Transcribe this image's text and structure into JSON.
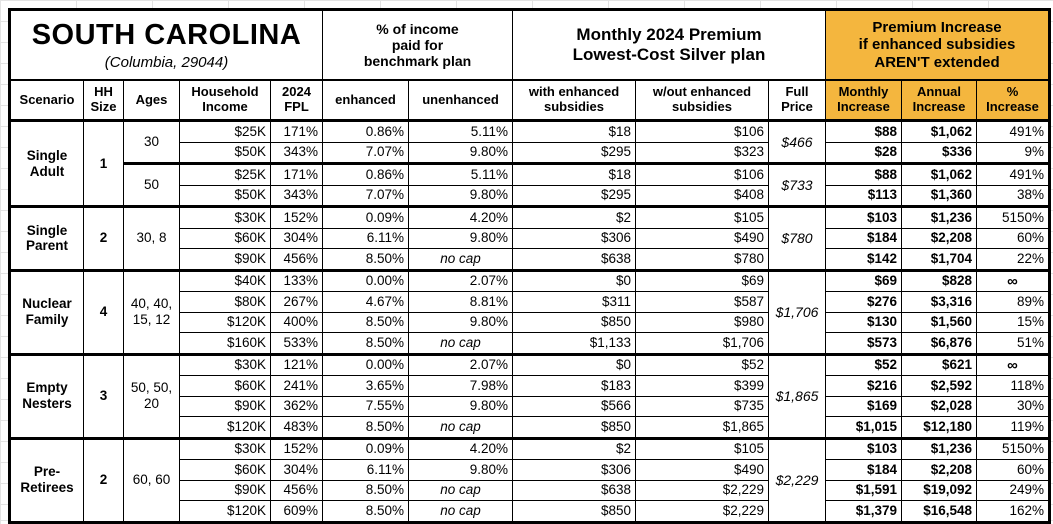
{
  "colors": {
    "accent_orange": "#F4B63E",
    "shaded_gray": "#D9D9D9",
    "border": "#000000"
  },
  "chart_data": {
    "type": "table",
    "title": "SOUTH CAROLINA",
    "subtitle": "(Columbia, 29044)",
    "groups": {
      "benchmark": "% of income\npaid for\nbenchmark plan",
      "premium": "Monthly 2024 Premium\nLowest-Cost Silver plan",
      "increase": "Premium Increase\nif enhanced subsidies\nAREN'T extended"
    },
    "columns": [
      "Scenario",
      "HH\nSize",
      "Ages",
      "Household\nIncome",
      "2024\nFPL",
      "enhanced",
      "unenhanced",
      "with enhanced\nsubsidies",
      "w/out enhanced\nsubsidies",
      "Full\nPrice",
      "Monthly\nIncrease",
      "Annual\nIncrease",
      "%\nIncrease"
    ],
    "scenarios": [
      {
        "name": "Single\nAdult",
        "hh_size": "1",
        "age_groups": [
          {
            "ages": "30",
            "shaded": true,
            "full_price": "$466",
            "rows": [
              {
                "income": "$25K",
                "fpl": "171%",
                "enhanced": "0.86%",
                "unenhanced": "5.11%",
                "with_subsidies": "$18",
                "without_subsidies": "$106",
                "monthly": "$88",
                "annual": "$1,062",
                "pct": "491%"
              },
              {
                "income": "$50K",
                "fpl": "343%",
                "enhanced": "7.07%",
                "unenhanced": "9.80%",
                "with_subsidies": "$295",
                "without_subsidies": "$323",
                "monthly": "$28",
                "annual": "$336",
                "pct": "9%"
              }
            ]
          },
          {
            "ages": "50",
            "shaded": false,
            "full_price": "$733",
            "rows": [
              {
                "income": "$25K",
                "fpl": "171%",
                "enhanced": "0.86%",
                "unenhanced": "5.11%",
                "with_subsidies": "$18",
                "without_subsidies": "$106",
                "monthly": "$88",
                "annual": "$1,062",
                "pct": "491%"
              },
              {
                "income": "$50K",
                "fpl": "343%",
                "enhanced": "7.07%",
                "unenhanced": "9.80%",
                "with_subsidies": "$295",
                "without_subsidies": "$408",
                "monthly": "$113",
                "annual": "$1,360",
                "pct": "38%"
              }
            ]
          }
        ]
      },
      {
        "name": "Single\nParent",
        "hh_size": "2",
        "age_groups": [
          {
            "ages": "30, 8",
            "shaded": true,
            "full_price": "$780",
            "rows": [
              {
                "income": "$30K",
                "fpl": "152%",
                "enhanced": "0.09%",
                "unenhanced": "4.20%",
                "with_subsidies": "$2",
                "without_subsidies": "$105",
                "monthly": "$103",
                "annual": "$1,236",
                "pct": "5150%"
              },
              {
                "income": "$60K",
                "fpl": "304%",
                "enhanced": "6.11%",
                "unenhanced": "9.80%",
                "with_subsidies": "$306",
                "without_subsidies": "$490",
                "monthly": "$184",
                "annual": "$2,208",
                "pct": "60%"
              },
              {
                "income": "$90K",
                "fpl": "456%",
                "enhanced": "8.50%",
                "unenhanced": "no cap",
                "with_subsidies": "$638",
                "without_subsidies": "$780",
                "monthly": "$142",
                "annual": "$1,704",
                "pct": "22%"
              }
            ]
          }
        ]
      },
      {
        "name": "Nuclear\nFamily",
        "hh_size": "4",
        "age_groups": [
          {
            "ages": "40, 40,\n15, 12",
            "shaded": false,
            "full_price": "$1,706",
            "rows": [
              {
                "income": "$40K",
                "fpl": "133%",
                "enhanced": "0.00%",
                "unenhanced": "2.07%",
                "with_subsidies": "$0",
                "without_subsidies": "$69",
                "monthly": "$69",
                "annual": "$828",
                "pct": "∞"
              },
              {
                "income": "$80K",
                "fpl": "267%",
                "enhanced": "4.67%",
                "unenhanced": "8.81%",
                "with_subsidies": "$311",
                "without_subsidies": "$587",
                "monthly": "$276",
                "annual": "$3,316",
                "pct": "89%"
              },
              {
                "income": "$120K",
                "fpl": "400%",
                "enhanced": "8.50%",
                "unenhanced": "9.80%",
                "with_subsidies": "$850",
                "without_subsidies": "$980",
                "monthly": "$130",
                "annual": "$1,560",
                "pct": "15%"
              },
              {
                "income": "$160K",
                "fpl": "533%",
                "enhanced": "8.50%",
                "unenhanced": "no cap",
                "with_subsidies": "$1,133",
                "without_subsidies": "$1,706",
                "monthly": "$573",
                "annual": "$6,876",
                "pct": "51%"
              }
            ]
          }
        ]
      },
      {
        "name": "Empty\nNesters",
        "hh_size": "3",
        "age_groups": [
          {
            "ages": "50, 50,\n20",
            "shaded": true,
            "full_price": "$1,865",
            "rows": [
              {
                "income": "$30K",
                "fpl": "121%",
                "enhanced": "0.00%",
                "unenhanced": "2.07%",
                "with_subsidies": "$0",
                "without_subsidies": "$52",
                "monthly": "$52",
                "annual": "$621",
                "pct": "∞"
              },
              {
                "income": "$60K",
                "fpl": "241%",
                "enhanced": "3.65%",
                "unenhanced": "7.98%",
                "with_subsidies": "$183",
                "without_subsidies": "$399",
                "monthly": "$216",
                "annual": "$2,592",
                "pct": "118%"
              },
              {
                "income": "$90K",
                "fpl": "362%",
                "enhanced": "7.55%",
                "unenhanced": "9.80%",
                "with_subsidies": "$566",
                "without_subsidies": "$735",
                "monthly": "$169",
                "annual": "$2,028",
                "pct": "30%"
              },
              {
                "income": "$120K",
                "fpl": "483%",
                "enhanced": "8.50%",
                "unenhanced": "no cap",
                "with_subsidies": "$850",
                "without_subsidies": "$1,865",
                "monthly": "$1,015",
                "annual": "$12,180",
                "pct": "119%"
              }
            ]
          }
        ]
      },
      {
        "name": "Pre-\nRetirees",
        "hh_size": "2",
        "age_groups": [
          {
            "ages": "60, 60",
            "shaded": false,
            "full_price": "$2,229",
            "rows": [
              {
                "income": "$30K",
                "fpl": "152%",
                "enhanced": "0.09%",
                "unenhanced": "4.20%",
                "with_subsidies": "$2",
                "without_subsidies": "$105",
                "monthly": "$103",
                "annual": "$1,236",
                "pct": "5150%"
              },
              {
                "income": "$60K",
                "fpl": "304%",
                "enhanced": "6.11%",
                "unenhanced": "9.80%",
                "with_subsidies": "$306",
                "without_subsidies": "$490",
                "monthly": "$184",
                "annual": "$2,208",
                "pct": "60%"
              },
              {
                "income": "$90K",
                "fpl": "456%",
                "enhanced": "8.50%",
                "unenhanced": "no cap",
                "with_subsidies": "$638",
                "without_subsidies": "$2,229",
                "monthly": "$1,591",
                "annual": "$19,092",
                "pct": "249%"
              },
              {
                "income": "$120K",
                "fpl": "609%",
                "enhanced": "8.50%",
                "unenhanced": "no cap",
                "with_subsidies": "$850",
                "without_subsidies": "$2,229",
                "monthly": "$1,379",
                "annual": "$16,548",
                "pct": "162%"
              }
            ]
          }
        ]
      }
    ]
  }
}
